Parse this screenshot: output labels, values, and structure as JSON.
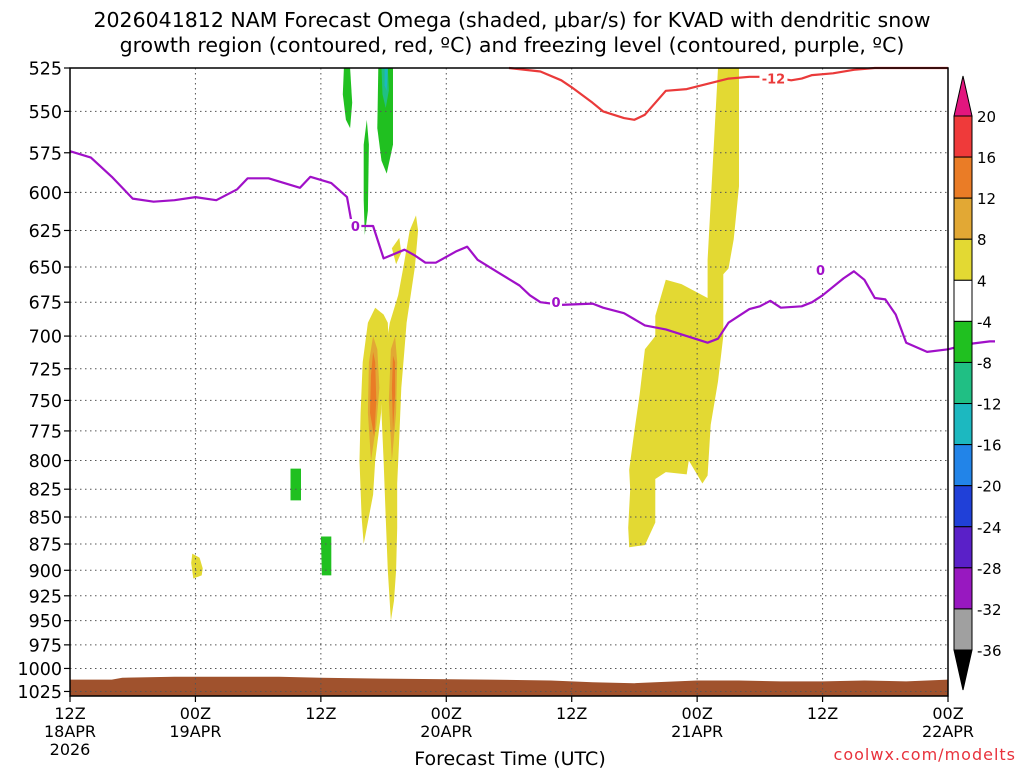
{
  "title_line1": "2026041812 NAM Forecast Omega (shaded, μbar/s) for KVAD with dendritic snow",
  "title_line2": "growth region (contoured, red, ºC) and freezing level (contoured, purple, ºC)",
  "credit": "coolwx.com/modelts",
  "chart_data": {
    "type": "heatmap",
    "xlabel": "Forecast Time (UTC)",
    "x_range_hours": [
      0,
      84
    ],
    "y_axis": {
      "scale": "log",
      "range_mb": [
        525,
        1030
      ],
      "reversed": true,
      "ticks": [
        525,
        550,
        575,
        600,
        625,
        650,
        675,
        700,
        725,
        750,
        775,
        800,
        825,
        850,
        875,
        900,
        925,
        950,
        975,
        1000,
        1025
      ]
    },
    "x_ticks": [
      {
        "hour": 0,
        "label": "12Z",
        "sub": "18APR",
        "sub2": "2026"
      },
      {
        "hour": 12,
        "label": "00Z",
        "sub": "19APR",
        "sub2": ""
      },
      {
        "hour": 24,
        "label": "12Z",
        "sub": "",
        "sub2": ""
      },
      {
        "hour": 36,
        "label": "00Z",
        "sub": "20APR",
        "sub2": ""
      },
      {
        "hour": 48,
        "label": "12Z",
        "sub": "",
        "sub2": ""
      },
      {
        "hour": 60,
        "label": "00Z",
        "sub": "21APR",
        "sub2": ""
      },
      {
        "hour": 72,
        "label": "12Z",
        "sub": "",
        "sub2": ""
      },
      {
        "hour": 84,
        "label": "00Z",
        "sub": "22APR",
        "sub2": ""
      }
    ],
    "grid": true,
    "colorbar": {
      "bins": [
        {
          "from": 20,
          "to": null,
          "color": "#e2167e"
        },
        {
          "from": 16,
          "to": 20,
          "color": "#ef3a3a"
        },
        {
          "from": 12,
          "to": 16,
          "color": "#ea7c26"
        },
        {
          "from": 8,
          "to": 12,
          "color": "#e2a834"
        },
        {
          "from": 4,
          "to": 8,
          "color": "#e3d933"
        },
        {
          "from": -4,
          "to": 4,
          "color": "#ffffff"
        },
        {
          "from": -8,
          "to": -4,
          "color": "#20c020"
        },
        {
          "from": -12,
          "to": -8,
          "color": "#20bf84"
        },
        {
          "from": -16,
          "to": -12,
          "color": "#1cb8c0"
        },
        {
          "from": -20,
          "to": -16,
          "color": "#2284e8"
        },
        {
          "from": -24,
          "to": -20,
          "color": "#2040d8"
        },
        {
          "from": -28,
          "to": -24,
          "color": "#5a20c8"
        },
        {
          "from": -32,
          "to": -28,
          "color": "#9818c0"
        },
        {
          "from": -36,
          "to": -32,
          "color": "#a0a0a0"
        },
        {
          "from": null,
          "to": -36,
          "color": "#000000"
        }
      ],
      "labels": [
        20,
        16,
        12,
        8,
        4,
        -4,
        -8,
        -12,
        -16,
        -20,
        -24,
        -28,
        -32,
        -36
      ]
    },
    "contours": [
      {
        "label": "0",
        "level": 0,
        "color": "#a010c8",
        "points": [
          [
            0,
            574
          ],
          [
            2,
            578
          ],
          [
            4,
            590
          ],
          [
            6,
            604
          ],
          [
            8,
            606
          ],
          [
            10,
            605
          ],
          [
            12,
            603
          ],
          [
            14,
            605
          ],
          [
            16,
            598
          ],
          [
            17,
            591
          ],
          [
            19,
            591
          ],
          [
            22,
            597
          ],
          [
            23,
            590
          ],
          [
            25,
            594
          ],
          [
            26.5,
            603
          ],
          [
            27,
            622
          ],
          [
            29,
            622
          ],
          [
            30,
            644
          ],
          [
            32,
            638
          ],
          [
            33,
            642
          ],
          [
            34,
            647
          ],
          [
            35,
            647
          ],
          [
            37,
            639
          ],
          [
            38,
            636
          ],
          [
            39,
            645
          ],
          [
            41,
            654
          ],
          [
            43,
            663
          ],
          [
            44,
            670
          ],
          [
            45,
            675
          ],
          [
            47,
            677
          ],
          [
            50,
            676
          ],
          [
            51,
            679
          ],
          [
            53,
            683
          ],
          [
            55,
            692
          ],
          [
            57,
            695
          ],
          [
            59,
            700
          ],
          [
            61,
            705
          ],
          [
            62,
            702
          ],
          [
            63,
            690
          ],
          [
            65,
            680
          ],
          [
            66,
            678
          ],
          [
            67,
            674
          ],
          [
            68,
            679
          ],
          [
            70,
            678
          ],
          [
            71,
            675
          ],
          [
            72,
            670
          ],
          [
            74,
            658
          ],
          [
            75,
            653
          ],
          [
            76,
            659
          ],
          [
            77,
            672
          ],
          [
            78,
            673
          ],
          [
            79,
            684
          ],
          [
            80,
            705
          ],
          [
            82,
            712
          ],
          [
            84,
            710
          ],
          [
            86,
            706
          ],
          [
            88,
            704
          ],
          [
            88.5,
            704
          ]
        ],
        "label_positions": [
          [
            27.3,
            622
          ],
          [
            46.5,
            675
          ],
          [
            71.8,
            652
          ]
        ]
      },
      {
        "label": "-12",
        "level": -12,
        "color": "#ea3a3a",
        "points": [
          [
            42,
            522
          ],
          [
            45,
            527
          ],
          [
            47,
            532
          ],
          [
            48,
            536
          ],
          [
            50,
            545
          ],
          [
            51,
            550
          ],
          [
            53,
            554
          ],
          [
            54,
            555
          ],
          [
            55,
            552
          ],
          [
            56,
            545
          ],
          [
            57,
            538
          ],
          [
            59,
            537
          ],
          [
            61,
            534
          ],
          [
            63,
            531
          ],
          [
            65,
            530
          ],
          [
            66,
            530
          ],
          [
            67,
            532
          ],
          [
            68,
            531
          ],
          [
            69,
            532
          ],
          [
            70,
            531
          ],
          [
            71,
            529
          ],
          [
            73,
            528
          ],
          [
            75,
            526
          ],
          [
            77,
            525
          ],
          [
            79,
            523
          ],
          [
            81,
            522
          ],
          [
            84,
            522
          ]
        ],
        "label_positions": [
          [
            67.3,
            531
          ]
        ]
      }
    ],
    "shaded_regions": [
      {
        "value_range": [
          4,
          8
        ],
        "color": "#e3d933",
        "points": [
          [
            53.5,
            878
          ],
          [
            55,
            876
          ],
          [
            56,
            855
          ],
          [
            56,
            816
          ],
          [
            57,
            810
          ],
          [
            59,
            812
          ],
          [
            59.2,
            800
          ],
          [
            60.5,
            820
          ],
          [
            61,
            813
          ],
          [
            61.3,
            770
          ],
          [
            62,
            735
          ],
          [
            62.5,
            700
          ],
          [
            62.5,
            655
          ],
          [
            63,
            651
          ],
          [
            63.5,
            631
          ],
          [
            64,
            596
          ],
          [
            64,
            519
          ],
          [
            62,
            519
          ],
          [
            61,
            645
          ],
          [
            61,
            672
          ],
          [
            58.5,
            662
          ],
          [
            57,
            659
          ],
          [
            56,
            685
          ],
          [
            56,
            700
          ],
          [
            55,
            710
          ],
          [
            54.5,
            745
          ],
          [
            54,
            775
          ],
          [
            53.5,
            808
          ],
          [
            53.6,
            825
          ],
          [
            53.4,
            860
          ]
        ]
      },
      {
        "value_range": [
          4,
          8
        ],
        "color": "#e3d933",
        "points": [
          [
            28.1,
            875
          ],
          [
            29,
            830
          ],
          [
            29.2,
            800
          ],
          [
            29.7,
            765
          ],
          [
            30.2,
            725
          ],
          [
            30.5,
            710
          ],
          [
            30.4,
            690
          ],
          [
            30,
            684
          ],
          [
            29.2,
            679
          ],
          [
            28.5,
            690
          ],
          [
            28,
            720
          ],
          [
            27.8,
            760
          ],
          [
            27.7,
            800
          ],
          [
            27.9,
            850
          ]
        ]
      },
      {
        "value_range": [
          4,
          8
        ],
        "color": "#e3d933",
        "points": [
          [
            30.7,
            950
          ],
          [
            31,
            930
          ],
          [
            31.2,
            900
          ],
          [
            31.3,
            860
          ],
          [
            31.3,
            820
          ],
          [
            31.5,
            780
          ],
          [
            31.7,
            740
          ],
          [
            32,
            710
          ],
          [
            32.2,
            690
          ],
          [
            32.6,
            670
          ],
          [
            33,
            650
          ],
          [
            33.3,
            625
          ],
          [
            33.1,
            615
          ],
          [
            32.5,
            625
          ],
          [
            31.9,
            650
          ],
          [
            31.4,
            670
          ],
          [
            30.6,
            690
          ],
          [
            30,
            720
          ],
          [
            29.8,
            760
          ],
          [
            30,
            800
          ],
          [
            30.2,
            850
          ],
          [
            30.4,
            900
          ]
        ]
      },
      {
        "value_range": [
          8,
          12
        ],
        "color": "#e2a834",
        "points": [
          [
            28.8,
            800
          ],
          [
            29.3,
            770
          ],
          [
            29.6,
            740
          ],
          [
            29.4,
            710
          ],
          [
            29,
            700
          ],
          [
            28.6,
            720
          ],
          [
            28.5,
            760
          ]
        ]
      },
      {
        "value_range": [
          8,
          12
        ],
        "color": "#e2a834",
        "points": [
          [
            30.8,
            800
          ],
          [
            31.2,
            760
          ],
          [
            31.3,
            720
          ],
          [
            31.1,
            700
          ],
          [
            30.7,
            710
          ],
          [
            30.5,
            750
          ]
        ]
      },
      {
        "value_range": [
          12,
          16
        ],
        "color": "#ea7c26",
        "points": [
          [
            29.1,
            780
          ],
          [
            29.3,
            750
          ],
          [
            29.2,
            720
          ],
          [
            29,
            712
          ],
          [
            28.8,
            730
          ],
          [
            28.7,
            760
          ]
        ]
      },
      {
        "value_range": [
          12,
          16
        ],
        "color": "#ea7c26",
        "points": [
          [
            30.9,
            775
          ],
          [
            31.1,
            745
          ],
          [
            31.1,
            720
          ],
          [
            30.9,
            715
          ],
          [
            30.8,
            740
          ]
        ]
      },
      {
        "value_range": [
          -8,
          -4
        ],
        "color": "#20c020",
        "points": [
          [
            26.8,
            522
          ],
          [
            26.2,
            522
          ],
          [
            26.1,
            540
          ],
          [
            26.4,
            555
          ],
          [
            26.8,
            560
          ],
          [
            27,
            545
          ]
        ]
      },
      {
        "value_range": [
          -8,
          -4
        ],
        "color": "#20c020",
        "points": [
          [
            30.2,
            522
          ],
          [
            29.5,
            522
          ],
          [
            29.4,
            560
          ],
          [
            29.8,
            580
          ],
          [
            30.3,
            588
          ],
          [
            30.9,
            570
          ],
          [
            30.9,
            522
          ]
        ]
      },
      {
        "value_range": [
          -8,
          -4
        ],
        "color": "#20c020",
        "points": [
          [
            28.4,
            555
          ],
          [
            28.1,
            570
          ],
          [
            28.1,
            605
          ],
          [
            28.2,
            628
          ],
          [
            28.5,
            612
          ],
          [
            28.6,
            570
          ]
        ]
      },
      {
        "value_range": [
          -8,
          -4
        ],
        "color": "#20c020",
        "points": [
          [
            21.1,
            807
          ],
          [
            22.1,
            807
          ],
          [
            22.1,
            835
          ],
          [
            21.1,
            835
          ]
        ]
      },
      {
        "value_range": [
          -8,
          -4
        ],
        "color": "#20c020",
        "points": [
          [
            24,
            868
          ],
          [
            25,
            868
          ],
          [
            25,
            905
          ],
          [
            24.1,
            905
          ]
        ]
      },
      {
        "value_range": [
          -12,
          -8
        ],
        "color": "#20bf84",
        "points": [
          [
            30.4,
            522
          ],
          [
            29.8,
            522
          ],
          [
            29.9,
            540
          ],
          [
            30.2,
            548
          ],
          [
            30.5,
            538
          ]
        ]
      },
      {
        "value_range": [
          -16,
          -12
        ],
        "color": "#1cb8c0",
        "points": [
          [
            30.4,
            522
          ],
          [
            30.1,
            522
          ],
          [
            30.1,
            535
          ],
          [
            30.3,
            538
          ]
        ]
      },
      {
        "value_range": [
          4,
          8
        ],
        "color": "#e3d933",
        "points": [
          [
            11.7,
            884
          ],
          [
            12.4,
            888
          ],
          [
            12.7,
            898
          ],
          [
            12.6,
            905
          ],
          [
            11.8,
            908
          ],
          [
            11.6,
            893
          ]
        ]
      },
      {
        "value_range": [
          4,
          8
        ],
        "color": "#e3d933",
        "points": [
          [
            30.8,
            637
          ],
          [
            31.2,
            648
          ],
          [
            31.7,
            640
          ],
          [
            31.5,
            630
          ]
        ]
      }
    ],
    "terrain": {
      "color": "#a0522d",
      "surface_pressure_mb": [
        [
          0,
          1012
        ],
        [
          4,
          1012
        ],
        [
          5,
          1010
        ],
        [
          10,
          1009
        ],
        [
          20,
          1009
        ],
        [
          24,
          1010
        ],
        [
          30,
          1011
        ],
        [
          40,
          1012
        ],
        [
          46,
          1013
        ],
        [
          50,
          1015
        ],
        [
          54,
          1016
        ],
        [
          56,
          1015
        ],
        [
          60,
          1013
        ],
        [
          64,
          1013
        ],
        [
          68,
          1014
        ],
        [
          72,
          1014
        ],
        [
          76,
          1013
        ],
        [
          80,
          1014
        ],
        [
          82,
          1013
        ],
        [
          84,
          1012
        ]
      ]
    }
  }
}
